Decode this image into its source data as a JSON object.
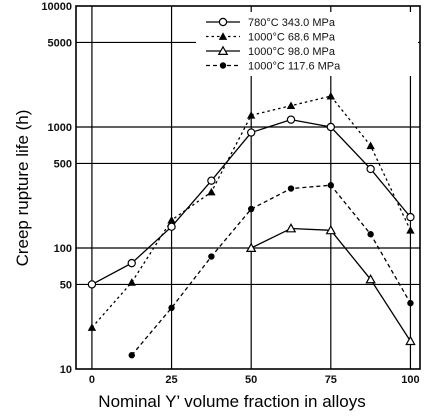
{
  "chart_data": {
    "type": "line",
    "xlabel": "Nominal Y’ volume fraction in alloys",
    "ylabel": "Creep rupture life (h)",
    "xlim": [
      -5,
      103
    ],
    "ylim": [
      10,
      10000
    ],
    "y_scale": "log",
    "x_ticks": [
      0,
      25,
      50,
      75,
      100
    ],
    "x_tick_labels": [
      "0",
      "25",
      "50",
      "75",
      "100"
    ],
    "y_ticks": [
      10,
      50,
      100,
      500,
      1000,
      5000,
      10000
    ],
    "y_tick_labels": [
      "10",
      "50",
      "100",
      "500",
      "1000",
      "5000",
      "10000"
    ],
    "grid": true,
    "legend_position": "top-right",
    "series": [
      {
        "name": "780°C 343.0 MPa",
        "marker": "open-circle",
        "line": "solid",
        "x": [
          0,
          12.5,
          25,
          37.5,
          50,
          62.5,
          75,
          87.5,
          100
        ],
        "y": [
          50,
          75,
          150,
          360,
          900,
          1150,
          1000,
          450,
          180
        ]
      },
      {
        "name": "1000°C 68.6 MPa",
        "marker": "filled-triangle",
        "line": "dotted",
        "x": [
          0,
          12.5,
          25,
          37.5,
          50,
          62.5,
          75,
          87.5,
          100
        ],
        "y": [
          22,
          52,
          170,
          290,
          1250,
          1500,
          1800,
          700,
          140
        ]
      },
      {
        "name": "1000°C 98.0 MPa",
        "marker": "open-triangle",
        "line": "solid",
        "x": [
          50,
          62.5,
          75,
          87.5,
          100
        ],
        "y": [
          100,
          145,
          140,
          55,
          17
        ]
      },
      {
        "name": "1000°C 117.6 MPa",
        "marker": "filled-circle",
        "line": "dashed",
        "x": [
          12.5,
          25,
          37.5,
          50,
          62.5,
          75,
          87.5,
          100
        ],
        "y": [
          13,
          32,
          85,
          210,
          310,
          330,
          130,
          35
        ]
      }
    ]
  }
}
